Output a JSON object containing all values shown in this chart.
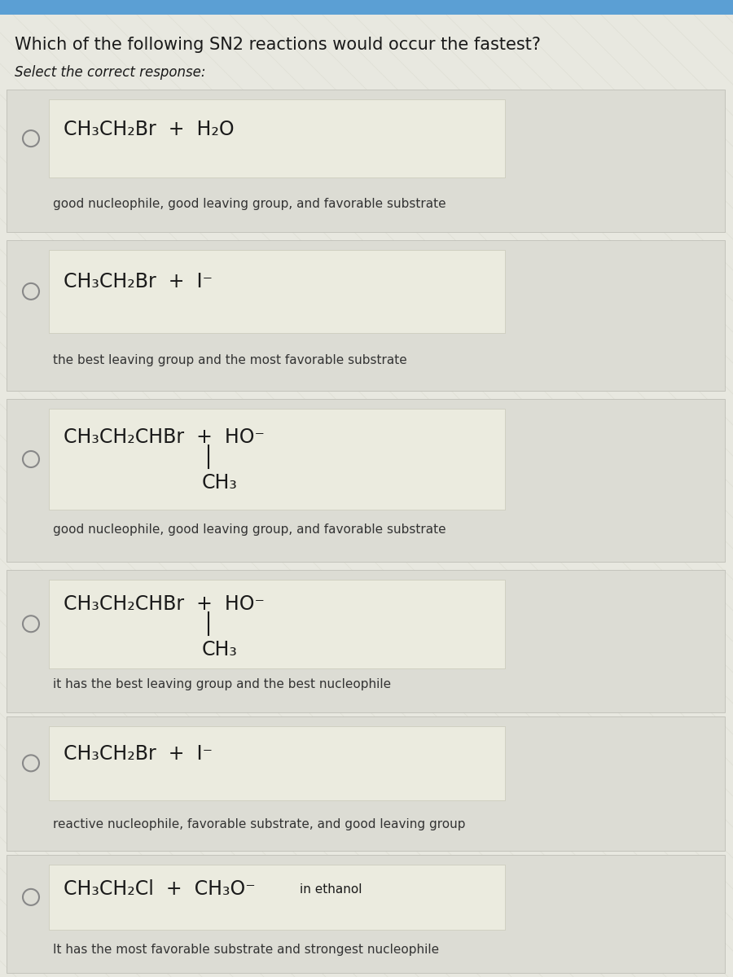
{
  "title": "Which of the following SN2 reactions would occur the fastest?",
  "subtitle": "Select the correct response:",
  "bg_color": "#d8d8d8",
  "page_bg": "#e8e8e0",
  "option_box_bg": "#f0f0e8",
  "reaction_box_bg": "#eaeae0",
  "header_blue": "#5b9fd4",
  "text_dark": "#1a1a1a",
  "text_mid": "#333333",
  "separator_color": "#c0c0c0",
  "options": [
    {
      "reaction_main": "CH₃CH₂Br  +  H₂O",
      "explanation": "good nucleophile, good leaving group, and favorable substrate",
      "has_branch": false,
      "branch_text": ""
    },
    {
      "reaction_main": "CH₃CH₂Br  +  I⁻",
      "explanation": "the best leaving group and the most favorable substrate",
      "has_branch": false,
      "branch_text": ""
    },
    {
      "reaction_main": "CH₃CH₂CHBr  +  HO⁻",
      "explanation": "good nucleophile, good leaving group, and favorable substrate",
      "has_branch": true,
      "branch_text": "CH₃"
    },
    {
      "reaction_main": "CH₃CH₂CHBr  +  HO⁻",
      "explanation": "it has the best leaving group and the best nucleophile",
      "has_branch": true,
      "branch_text": "CH₃"
    },
    {
      "reaction_main": "CH₃CH₂Br  +  I⁻",
      "explanation": "reactive nucleophile, favorable substrate, and good leaving group",
      "has_branch": false,
      "branch_text": ""
    },
    {
      "reaction_main": "CH₃CH₂Cl  +  CH₃O⁻",
      "reaction_suffix": "in ethanol",
      "explanation": "It has the most favorable substrate and strongest nucleophile",
      "has_branch": false,
      "branch_text": ""
    }
  ]
}
